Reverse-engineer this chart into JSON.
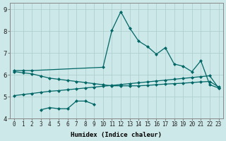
{
  "xlabel": "Humidex (Indice chaleur)",
  "background_color": "#cce8e8",
  "grid_color": "#b0d0d0",
  "line_color": "#006666",
  "xlim": [
    -0.5,
    23.5
  ],
  "ylim": [
    4.0,
    9.3
  ],
  "yticks": [
    4,
    5,
    6,
    7,
    8,
    9
  ],
  "xticks": [
    0,
    1,
    2,
    3,
    4,
    5,
    6,
    7,
    8,
    9,
    10,
    11,
    12,
    13,
    14,
    15,
    16,
    17,
    18,
    19,
    20,
    21,
    22,
    23
  ],
  "line1_x": [
    0,
    1,
    2,
    10,
    11,
    12,
    13,
    14,
    15,
    16,
    17,
    18,
    19,
    20,
    21,
    22,
    23
  ],
  "line1_y": [
    6.2,
    6.2,
    6.2,
    6.35,
    8.05,
    8.9,
    8.15,
    7.55,
    7.3,
    6.95,
    7.25,
    6.5,
    6.4,
    6.15,
    6.65,
    5.55,
    5.4
  ],
  "line2_x": [
    0,
    1,
    2,
    3,
    4,
    5,
    6,
    7,
    8,
    9,
    10,
    11,
    12,
    13,
    14,
    15,
    16,
    17,
    18,
    19,
    20,
    21,
    22,
    23
  ],
  "line2_y": [
    6.15,
    6.1,
    6.05,
    5.95,
    5.85,
    5.8,
    5.75,
    5.7,
    5.65,
    5.6,
    5.55,
    5.5,
    5.5,
    5.5,
    5.5,
    5.52,
    5.55,
    5.58,
    5.6,
    5.62,
    5.65,
    5.68,
    5.7,
    5.45
  ],
  "line3_x": [
    0,
    1,
    2,
    3,
    4,
    5,
    6,
    7,
    8,
    9,
    10,
    11,
    12,
    13,
    14,
    15,
    16,
    17,
    18,
    19,
    20,
    21,
    22,
    23
  ],
  "line3_y": [
    5.05,
    5.1,
    5.15,
    5.2,
    5.25,
    5.28,
    5.32,
    5.36,
    5.4,
    5.44,
    5.48,
    5.52,
    5.56,
    5.6,
    5.64,
    5.68,
    5.72,
    5.76,
    5.8,
    5.84,
    5.88,
    5.92,
    5.96,
    5.4
  ],
  "line4_x": [
    3,
    4,
    5,
    6,
    7,
    8,
    9
  ],
  "line4_y": [
    4.4,
    4.5,
    4.45,
    4.45,
    4.8,
    4.8,
    4.65
  ]
}
